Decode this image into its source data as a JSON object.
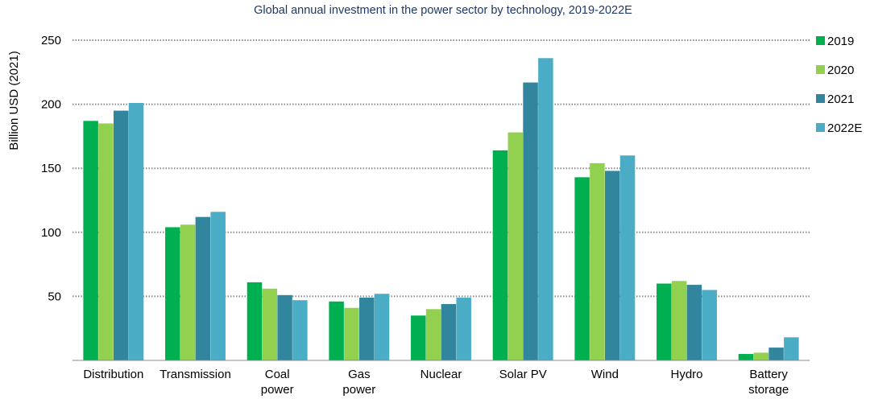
{
  "chart_data": {
    "type": "bar",
    "title": "Global annual investment in the power sector by technology, 2019-2022E",
    "ylabel": "Billion USD (2021)",
    "xlabel": "",
    "ylim": [
      0,
      250
    ],
    "yticks": [
      50,
      100,
      150,
      200,
      250
    ],
    "grid": true,
    "legend_position": "right",
    "categories": [
      [
        "Distribution"
      ],
      [
        "Transmission"
      ],
      [
        "Coal",
        "power"
      ],
      [
        "Gas",
        "power"
      ],
      [
        "Nuclear"
      ],
      [
        "Solar PV"
      ],
      [
        "Wind"
      ],
      [
        "Hydro"
      ],
      [
        "Battery",
        "storage"
      ]
    ],
    "series": [
      {
        "name": "2019",
        "color": "#00b050",
        "values": [
          187,
          104,
          61,
          46,
          35,
          164,
          143,
          60,
          5
        ]
      },
      {
        "name": "2020",
        "color": "#92d050",
        "values": [
          185,
          106,
          56,
          41,
          40,
          178,
          154,
          62,
          6
        ]
      },
      {
        "name": "2021",
        "color": "#31859c",
        "values": [
          195,
          112,
          51,
          49,
          44,
          217,
          148,
          59,
          10
        ]
      },
      {
        "name": "2022E",
        "color": "#4bacc6",
        "values": [
          201,
          116,
          47,
          52,
          49,
          236,
          160,
          55,
          18
        ]
      }
    ],
    "title_color": "#1f3864"
  }
}
